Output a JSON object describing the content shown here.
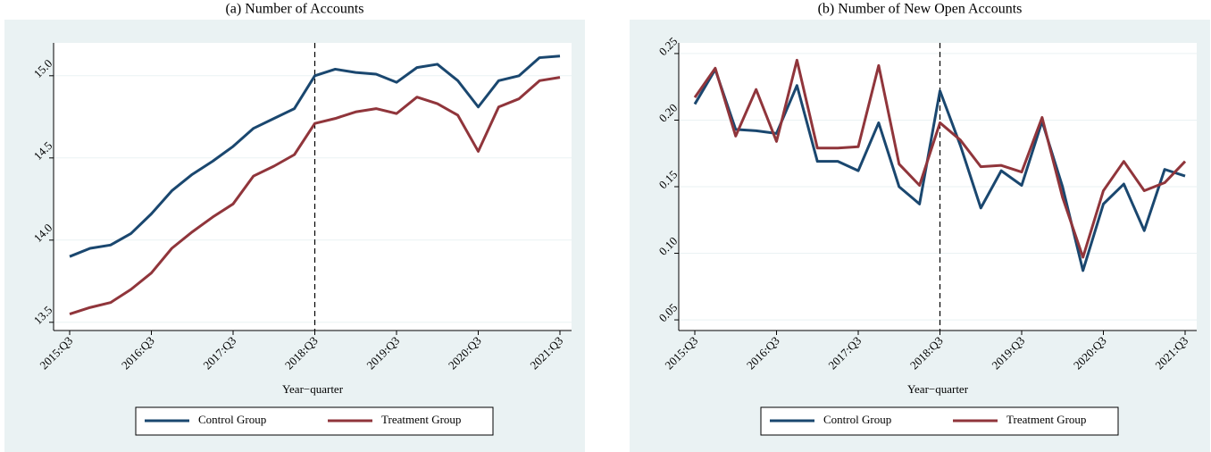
{
  "chart_data": [
    {
      "type": "line",
      "title": "(a) Number of Accounts",
      "x_label": "Year−quarter",
      "categories": [
        "2015:Q3",
        null,
        null,
        null,
        "2016:Q3",
        null,
        null,
        null,
        "2017:Q3",
        null,
        null,
        null,
        "2018:Q3",
        null,
        null,
        null,
        "2019:Q3",
        null,
        null,
        null,
        "2020:Q3",
        null,
        null,
        null,
        "2021:Q3"
      ],
      "series": [
        {
          "name": "Control Group",
          "color": "#1a476f",
          "values": [
            13.9,
            13.95,
            13.97,
            14.04,
            14.16,
            14.3,
            14.4,
            14.48,
            14.57,
            14.68,
            14.74,
            14.8,
            15.0,
            15.04,
            15.02,
            15.01,
            14.96,
            15.05,
            15.07,
            14.97,
            14.81,
            14.97,
            15.0,
            15.11,
            15.12
          ]
        },
        {
          "name": "Treatment Group",
          "color": "#90353b",
          "values": [
            13.55,
            13.59,
            13.62,
            13.7,
            13.8,
            13.95,
            14.05,
            14.14,
            14.22,
            14.39,
            14.45,
            14.52,
            14.71,
            14.74,
            14.78,
            14.8,
            14.77,
            14.87,
            14.83,
            14.76,
            14.54,
            14.81,
            14.86,
            14.97,
            14.99
          ]
        }
      ],
      "ylim": [
        13.45,
        15.2
      ],
      "yticks": [
        13.5,
        {
          "value": 14,
          "label": "14.0"
        },
        14.5,
        {
          "value": 15,
          "label": "15.0"
        }
      ],
      "grid": true,
      "vline": "2018:Q3",
      "legend": "bottom"
    },
    {
      "type": "line",
      "title": "(b) Number of New Open Accounts",
      "x_label": "Year−quarter",
      "categories": [
        "2015:Q3",
        null,
        null,
        null,
        "2016:Q3",
        null,
        null,
        null,
        "2017:Q3",
        null,
        null,
        null,
        "2018:Q3",
        null,
        null,
        null,
        "2019:Q3",
        null,
        null,
        null,
        "2020:Q3",
        null,
        null,
        null,
        "2021:Q3"
      ],
      "series": [
        {
          "name": "Control Group",
          "color": "#1a476f",
          "values": [
            0.212,
            0.238,
            0.193,
            0.192,
            0.19,
            0.226,
            0.169,
            0.169,
            0.162,
            0.198,
            0.15,
            0.137,
            0.222,
            0.181,
            0.134,
            0.162,
            0.151,
            0.199,
            0.15,
            0.087,
            0.137,
            0.152,
            0.117,
            0.163,
            0.158
          ]
        },
        {
          "name": "Treatment Group",
          "color": "#90353b",
          "values": [
            0.217,
            0.239,
            0.188,
            0.223,
            0.184,
            0.245,
            0.179,
            0.179,
            0.18,
            0.241,
            0.167,
            0.151,
            0.198,
            0.185,
            0.165,
            0.166,
            0.161,
            0.202,
            0.142,
            0.097,
            0.147,
            0.169,
            0.147,
            0.153,
            0.169
          ]
        }
      ],
      "ylim": [
        0.042,
        0.258
      ],
      "yticks": [
        0.05,
        {
          "value": 0.1,
          "label": "0.10"
        },
        0.15,
        {
          "value": 0.2,
          "label": "0.20"
        },
        0.25
      ],
      "grid": true,
      "vline": "2018:Q3",
      "legend": "bottom"
    }
  ]
}
